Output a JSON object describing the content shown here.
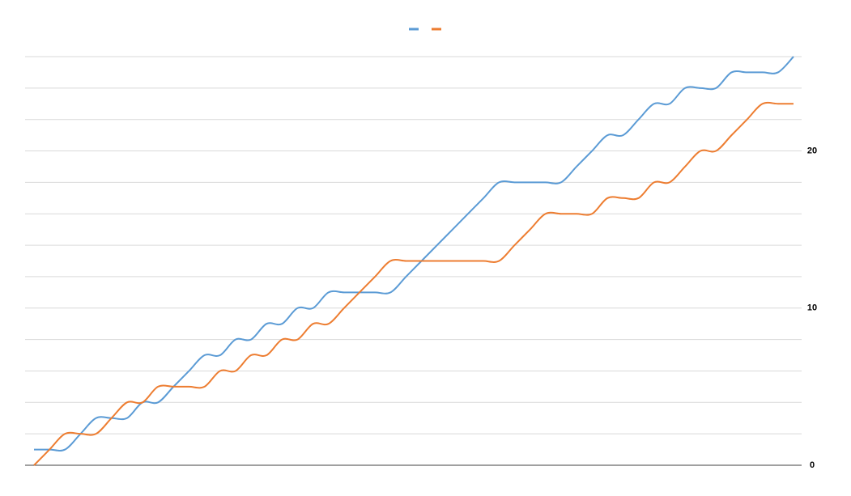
{
  "chart_data": {
    "type": "line",
    "series": [
      {
        "color": "#5b9bd5",
        "values": [
          1,
          1,
          1,
          2,
          3,
          3,
          3,
          4,
          4,
          5,
          6,
          7,
          7,
          8,
          8,
          9,
          9,
          10,
          10,
          11,
          11,
          11,
          11,
          11,
          12,
          13,
          14,
          15,
          16,
          17,
          18,
          18,
          18,
          18,
          18,
          19,
          20,
          21,
          21,
          22,
          23,
          23,
          24,
          24,
          24,
          25,
          25,
          25,
          25,
          26
        ]
      },
      {
        "color": "#ed7d31",
        "values": [
          0,
          1,
          2,
          2,
          2,
          3,
          4,
          4,
          5,
          5,
          5,
          5,
          6,
          6,
          7,
          7,
          8,
          8,
          9,
          9,
          10,
          11,
          12,
          13,
          13,
          13,
          13,
          13,
          13,
          13,
          13,
          14,
          15,
          16,
          16,
          16,
          16,
          17,
          17,
          17,
          18,
          18,
          19,
          20,
          20,
          21,
          22,
          23,
          23,
          23
        ]
      }
    ],
    "ylim": [
      0,
      26
    ],
    "yticks": [
      0,
      10,
      20
    ],
    "ygrid": [
      0,
      2,
      4,
      6,
      8,
      10,
      12,
      14,
      16,
      18,
      20,
      22,
      24,
      26
    ],
    "y_axis_side": "right",
    "grid": true
  }
}
